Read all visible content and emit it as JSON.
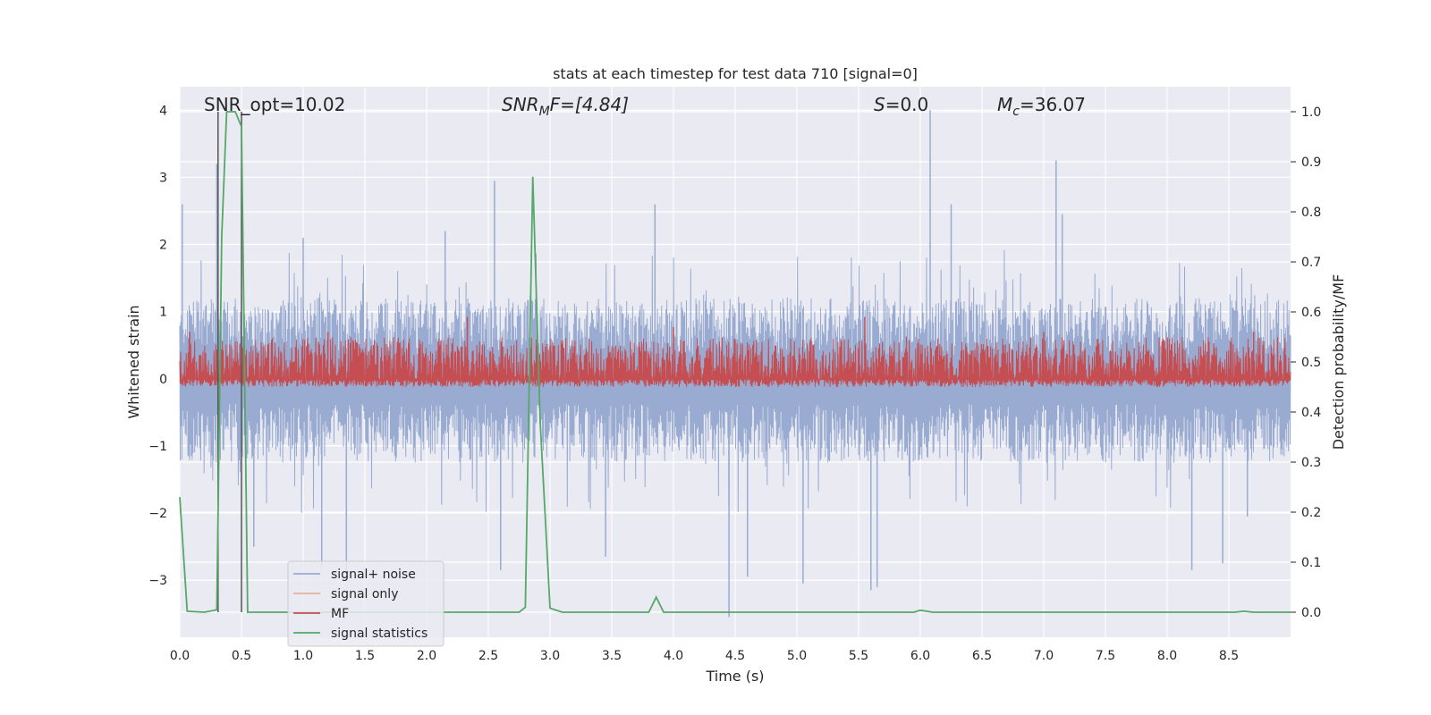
{
  "chart_data": {
    "type": "line",
    "title": "stats at each timestep for test data 710 [signal=0]",
    "xlabel": "Time (s)",
    "ylabel_left": "Whitened strain",
    "ylabel_right": "Detection probability/MF",
    "xlim": [
      0.0,
      9.0
    ],
    "ylim_left": [
      -3.85,
      4.35
    ],
    "ylim_right": [
      -0.05,
      1.05
    ],
    "x_ticks": [
      0.0,
      0.5,
      1.0,
      1.5,
      2.0,
      2.5,
      3.0,
      3.5,
      4.0,
      4.5,
      5.0,
      5.5,
      6.0,
      6.5,
      7.0,
      7.5,
      8.0,
      8.5
    ],
    "x_tick_labels": [
      "0.0",
      "0.5",
      "1.0",
      "1.5",
      "2.0",
      "2.5",
      "3.0",
      "3.5",
      "4.0",
      "4.5",
      "5.0",
      "5.5",
      "6.0",
      "6.5",
      "7.0",
      "7.5",
      "8.0",
      "8.5"
    ],
    "y_left_ticks": [
      -3,
      -2,
      -1,
      0,
      1,
      2,
      3,
      4
    ],
    "y_left_tick_labels": [
      "−3",
      "−2",
      "−1",
      "0",
      "1",
      "2",
      "3",
      "4"
    ],
    "y_right_ticks": [
      0.0,
      0.1,
      0.2,
      0.3,
      0.4,
      0.5,
      0.6,
      0.7,
      0.8,
      0.9,
      1.0
    ],
    "y_right_tick_labels": [
      "0.0",
      "0.1",
      "0.2",
      "0.3",
      "0.4",
      "0.5",
      "0.6",
      "0.7",
      "0.8",
      "0.9",
      "1.0"
    ],
    "grid": true,
    "annotations": {
      "snr_opt": "SNR_opt=10.02",
      "snr_mf_sym": "SNR",
      "snr_mf_sub": "M",
      "snr_mf_rest": "F=[4.84]",
      "s_sym": "S",
      "s_rest": "=0.0",
      "mc_sym": "M",
      "mc_sub": "c",
      "mc_rest": "=36.07"
    },
    "vertical_lines_x": [
      0.31,
      0.5
    ],
    "legend": {
      "position": "lower-left",
      "entries": [
        "signal+ noise",
        "signal only",
        "MF",
        "signal statistics"
      ]
    },
    "colors": {
      "signal_noise": "#99abd1",
      "signal_only": "#e8b09a",
      "mf": "#c44e52",
      "signal_statistics": "#55a868",
      "vline": "#555555",
      "plot_bg": "#eaeaf2",
      "grid": "#ffffff"
    },
    "series": [
      {
        "name": "signal+ noise",
        "axis": "left",
        "style": "noise",
        "amplitude_upper": 1.2,
        "amplitude_lower": -1.25,
        "spikes": [
          [
            0.02,
            2.6
          ],
          [
            0.3,
            3.2
          ],
          [
            0.6,
            -2.5
          ],
          [
            1.0,
            2.1
          ],
          [
            1.15,
            -2.8
          ],
          [
            1.35,
            -3.0
          ],
          [
            2.15,
            2.2
          ],
          [
            2.55,
            2.95
          ],
          [
            2.6,
            -2.85
          ],
          [
            3.45,
            -2.65
          ],
          [
            3.85,
            2.6
          ],
          [
            4.45,
            -3.55
          ],
          [
            4.6,
            -2.95
          ],
          [
            5.05,
            -3.05
          ],
          [
            5.6,
            -3.15
          ],
          [
            5.65,
            -3.1
          ],
          [
            6.08,
            4.0
          ],
          [
            6.25,
            2.6
          ],
          [
            7.1,
            3.25
          ],
          [
            7.15,
            2.45
          ],
          [
            8.2,
            -2.85
          ],
          [
            8.45,
            -2.75
          ],
          [
            8.65,
            -2.05
          ]
        ]
      },
      {
        "name": "signal only",
        "axis": "left",
        "x": [
          0.0,
          9.0
        ],
        "y": [
          0.0,
          0.0
        ]
      },
      {
        "name": "MF",
        "axis": "right",
        "style": "noise",
        "baseline": 0.465,
        "band_top": 0.55,
        "spikes": [
          [
            0.08,
            0.56
          ],
          [
            0.52,
            0.57
          ],
          [
            1.2,
            0.56
          ],
          [
            2.33,
            0.59
          ],
          [
            4.0,
            0.57
          ],
          [
            5.55,
            0.59
          ],
          [
            7.0,
            0.56
          ],
          [
            8.7,
            0.56
          ]
        ]
      },
      {
        "name": "signal statistics",
        "axis": "right",
        "x": [
          0.0,
          0.06,
          0.2,
          0.3,
          0.34,
          0.38,
          0.41,
          0.45,
          0.5,
          0.55,
          0.6,
          2.75,
          2.8,
          2.86,
          2.92,
          3.0,
          3.1,
          3.8,
          3.86,
          3.92,
          4.0,
          5.8,
          5.95,
          6.0,
          6.05,
          6.1,
          8.55,
          8.62,
          8.7,
          9.0
        ],
        "y": [
          0.23,
          0.002,
          0.0,
          0.005,
          0.75,
          1.0,
          1.0,
          1.0,
          0.97,
          0.0,
          0.0,
          0.0,
          0.01,
          0.87,
          0.38,
          0.008,
          0.0,
          0.0,
          0.03,
          0.0,
          0.0,
          0.0,
          0.0,
          0.004,
          0.002,
          0.0,
          0.0,
          0.002,
          0.0,
          0.0
        ]
      }
    ]
  }
}
